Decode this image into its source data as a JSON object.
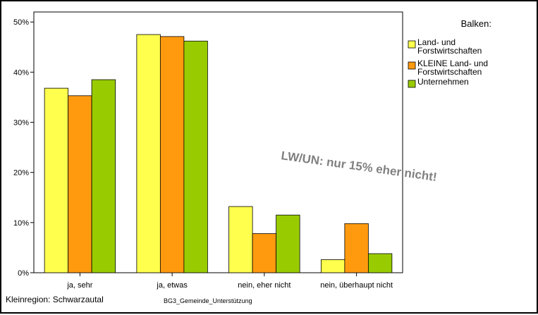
{
  "chart_data": {
    "type": "bar",
    "categories": [
      "ja, sehr",
      "ja, etwas",
      "nein, eher nicht",
      "nein, überhaupt nicht"
    ],
    "series": [
      {
        "name": "Land- und Forstwirtschaften",
        "legend_lines": [
          "Land- und",
          "Forstwirtschaften"
        ],
        "color": "#ffff4d",
        "values": [
          36.8,
          47.5,
          13.2,
          2.6
        ]
      },
      {
        "name": "KLEINE Land- und Forstwirtschaften",
        "legend_lines": [
          "KLEINE Land- und",
          "Forstwirtschaften"
        ],
        "color": "#ff9a0f",
        "values": [
          35.3,
          47.1,
          7.8,
          9.8
        ]
      },
      {
        "name": "Unternehmen",
        "legend_lines": [
          "Unternehmen"
        ],
        "color": "#99cc00",
        "values": [
          38.5,
          46.2,
          11.5,
          3.8
        ]
      }
    ],
    "ylim": [
      0,
      52
    ],
    "yticks": [
      0,
      10,
      20,
      30,
      40,
      50
    ],
    "ytick_suffix": "%",
    "ytick_labels": [
      "0%",
      "10%",
      "20%",
      "30%",
      "40%",
      "50%"
    ],
    "legend_title": "Balken:",
    "legend_position": "right",
    "grid": false,
    "xlabel": "BG3_Gemeinde_Unterstützung",
    "footer_left": "Kleinregion: Schwarzautal",
    "annotation": "LW/UN: nur 15% eher nicht!"
  }
}
